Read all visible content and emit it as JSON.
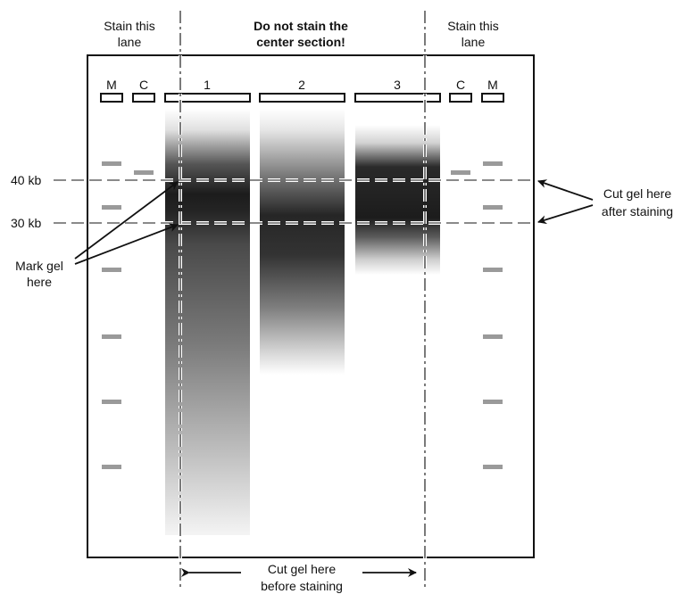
{
  "header": {
    "left_stain_line1": "Stain this",
    "left_stain_line2": "lane",
    "center_warning_line1": "Do not stain the",
    "center_warning_line2": "center section!",
    "right_stain_line1": "Stain this",
    "right_stain_line2": "lane"
  },
  "lanes": {
    "marker_left": "M",
    "control_left": "C",
    "sample_1": "1",
    "sample_2": "2",
    "sample_3": "3",
    "control_right": "C",
    "marker_right": "M"
  },
  "sizes": {
    "upper": "40 kb",
    "lower": "30 kb"
  },
  "annotations": {
    "mark_gel_line1": "Mark gel",
    "mark_gel_line2": "here",
    "cut_after_line1": "Cut gel here",
    "cut_after_line2": "after staining",
    "cut_before_line1": "Cut gel here",
    "cut_before_line2": "before staining"
  },
  "colors": {
    "gel_outline": "#111111",
    "band": "#1c1c1c",
    "marker_band": "#9a9a9a",
    "dashed_line": "#444444"
  }
}
